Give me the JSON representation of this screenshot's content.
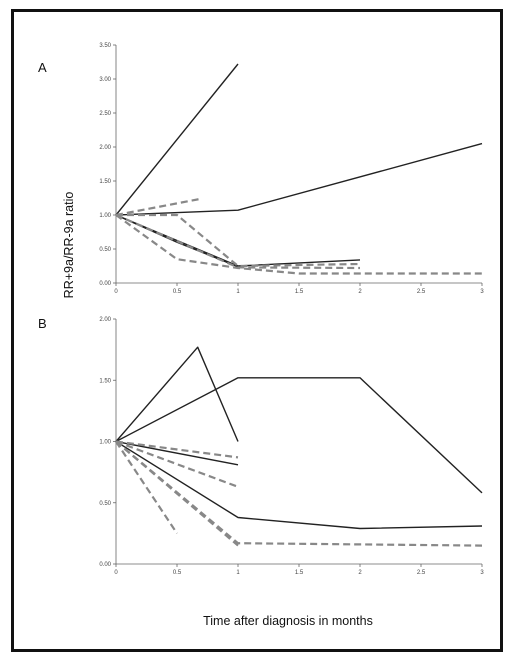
{
  "chart_data": {
    "type": "line",
    "ylabel": "RR+9a/RR-9a ratio",
    "xlabel": "Time after diagnosis in months",
    "line_styles": {
      "solid": "#222222",
      "dashed": "#888888"
    },
    "panels": [
      {
        "label": "A",
        "xlim": [
          0,
          3
        ],
        "ylim": [
          0,
          3.5
        ],
        "x_ticks": [
          "0",
          "0.5",
          "1",
          "1.5",
          "2",
          "2.5",
          "3"
        ],
        "y_ticks": [
          "0.00",
          "0.50",
          "1.00",
          "1.50",
          "2.00",
          "2.50",
          "3.00",
          "3.50"
        ],
        "series": [
          {
            "style": "solid",
            "points": [
              [
                0,
                1.0
              ],
              [
                1,
                3.22
              ]
            ]
          },
          {
            "style": "solid",
            "points": [
              [
                0,
                1.0
              ],
              [
                1,
                1.07
              ],
              [
                3,
                2.05
              ]
            ]
          },
          {
            "style": "solid",
            "points": [
              [
                0,
                1.0
              ],
              [
                1,
                0.25
              ],
              [
                2,
                0.34
              ]
            ]
          },
          {
            "style": "solid",
            "points": [
              [
                0,
                1.0
              ],
              [
                0.5,
                0.6
              ],
              [
                1,
                0.24
              ]
            ]
          },
          {
            "style": "dashed",
            "points": [
              [
                0,
                1.0
              ],
              [
                0.7,
                1.24
              ]
            ]
          },
          {
            "style": "dashed",
            "points": [
              [
                0,
                1.0
              ],
              [
                0.5,
                1.0
              ],
              [
                1,
                0.25
              ],
              [
                2,
                0.28
              ]
            ]
          },
          {
            "style": "dashed",
            "points": [
              [
                0,
                1.0
              ],
              [
                1,
                0.23
              ],
              [
                2,
                0.22
              ]
            ]
          },
          {
            "style": "dashed",
            "points": [
              [
                0,
                1.0
              ],
              [
                0.5,
                0.35
              ],
              [
                1,
                0.22
              ],
              [
                1.5,
                0.14
              ],
              [
                3,
                0.14
              ]
            ]
          }
        ]
      },
      {
        "label": "B",
        "xlim": [
          0,
          3
        ],
        "ylim": [
          0,
          2
        ],
        "x_ticks": [
          "0",
          "0.5",
          "1",
          "1.5",
          "2",
          "2.5",
          "3"
        ],
        "y_ticks": [
          "0.00",
          "0.50",
          "1.00",
          "1.50",
          "2.00"
        ],
        "series": [
          {
            "style": "solid",
            "points": [
              [
                0,
                1.0
              ],
              [
                0.67,
                1.77
              ],
              [
                1,
                1.0
              ]
            ]
          },
          {
            "style": "solid",
            "points": [
              [
                0,
                1.0
              ],
              [
                1,
                1.52
              ],
              [
                2,
                1.52
              ],
              [
                3,
                0.58
              ]
            ]
          },
          {
            "style": "solid",
            "points": [
              [
                0,
                1.0
              ],
              [
                1,
                0.81
              ]
            ]
          },
          {
            "style": "solid",
            "points": [
              [
                0,
                1.0
              ],
              [
                1,
                0.38
              ],
              [
                2,
                0.29
              ],
              [
                3,
                0.31
              ]
            ]
          },
          {
            "style": "dashed",
            "points": [
              [
                0,
                1.0
              ],
              [
                1,
                0.87
              ]
            ]
          },
          {
            "style": "dashed",
            "points": [
              [
                0,
                1.0
              ],
              [
                1,
                0.63
              ]
            ]
          },
          {
            "style": "dashed",
            "points": [
              [
                0,
                1.0
              ],
              [
                1,
                0.17
              ],
              [
                3,
                0.15
              ]
            ]
          },
          {
            "style": "dashed",
            "points": [
              [
                0,
                1.0
              ],
              [
                1,
                0.15
              ]
            ]
          },
          {
            "style": "dashed",
            "points": [
              [
                0,
                1.0
              ],
              [
                0.5,
                0.25
              ]
            ]
          }
        ]
      }
    ]
  }
}
